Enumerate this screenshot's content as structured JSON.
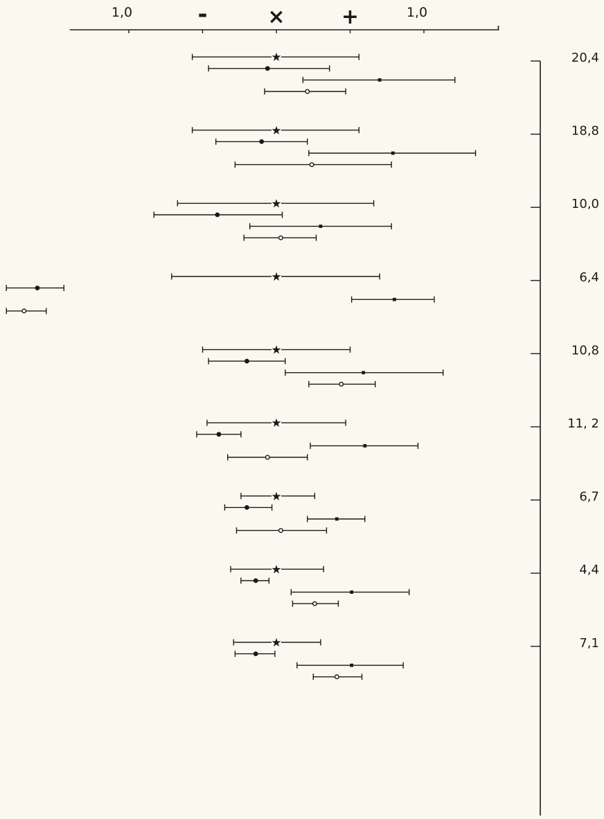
{
  "chart_data": {
    "type": "error-bar",
    "title": "",
    "xlabel": "",
    "ylabel": "",
    "x_ticks": [
      {
        "value": -1.0,
        "label": "1,0"
      },
      {
        "value": -0.5,
        "label": "-"
      },
      {
        "value": 0.0,
        "label": "×"
      },
      {
        "value": 0.5,
        "label": "+"
      },
      {
        "value": 1.0,
        "label": "1,0"
      }
    ],
    "x_extent": [
      -1.4,
      1.5
    ],
    "marker_styles": [
      "star",
      "dot",
      "square",
      "circle"
    ],
    "groups": [
      {
        "label": "20,4",
        "bars": [
          {
            "marker": "star",
            "center": 0.0,
            "low": -0.57,
            "high": 0.56
          },
          {
            "marker": "dot",
            "center": -0.06,
            "low": -0.46,
            "high": 0.36
          },
          {
            "marker": "square",
            "center": 0.7,
            "low": 0.18,
            "high": 1.21
          },
          {
            "marker": "circle",
            "center": 0.21,
            "low": -0.08,
            "high": 0.47
          }
        ]
      },
      {
        "label": "18,8",
        "bars": [
          {
            "marker": "star",
            "center": 0.0,
            "low": -0.57,
            "high": 0.56
          },
          {
            "marker": "dot",
            "center": -0.1,
            "low": -0.41,
            "high": 0.21
          },
          {
            "marker": "square",
            "center": 0.79,
            "low": 0.22,
            "high": 1.35
          },
          {
            "marker": "circle",
            "center": 0.24,
            "low": -0.28,
            "high": 0.78
          }
        ]
      },
      {
        "label": "10,0",
        "bars": [
          {
            "marker": "star",
            "center": 0.0,
            "low": -0.67,
            "high": 0.66
          },
          {
            "marker": "dot",
            "center": -0.4,
            "low": -0.83,
            "high": 0.04
          },
          {
            "marker": "square",
            "center": 0.3,
            "low": -0.18,
            "high": 0.78
          },
          {
            "marker": "circle",
            "center": 0.03,
            "low": -0.22,
            "high": 0.27
          }
        ]
      },
      {
        "label": "6,4",
        "bars": [
          {
            "marker": "star",
            "center": 0.0,
            "low": -0.71,
            "high": 0.7
          },
          {
            "marker": "dot",
            "center": -1.62,
            "low": -1.83,
            "high": -1.44
          },
          {
            "marker": "square",
            "center": 0.8,
            "low": 0.51,
            "high": 1.07
          },
          {
            "marker": "circle",
            "center": -1.71,
            "low": -1.83,
            "high": -1.56
          }
        ]
      },
      {
        "label": "10,8",
        "bars": [
          {
            "marker": "star",
            "center": 0.0,
            "low": -0.5,
            "high": 0.5
          },
          {
            "marker": "dot",
            "center": -0.2,
            "low": -0.46,
            "high": 0.06
          },
          {
            "marker": "square",
            "center": 0.59,
            "low": 0.06,
            "high": 1.13
          },
          {
            "marker": "circle",
            "center": 0.44,
            "low": 0.22,
            "high": 0.67
          }
        ]
      },
      {
        "label": "11, 2",
        "bars": [
          {
            "marker": "star",
            "center": 0.0,
            "low": -0.47,
            "high": 0.47
          },
          {
            "marker": "dot",
            "center": -0.39,
            "low": -0.54,
            "high": -0.24
          },
          {
            "marker": "square",
            "center": 0.6,
            "low": 0.23,
            "high": 0.96
          },
          {
            "marker": "circle",
            "center": -0.06,
            "low": -0.33,
            "high": 0.21
          }
        ]
      },
      {
        "label": "6,7",
        "bars": [
          {
            "marker": "star",
            "center": 0.0,
            "low": -0.24,
            "high": 0.26
          },
          {
            "marker": "dot",
            "center": -0.2,
            "low": -0.35,
            "high": -0.03
          },
          {
            "marker": "square",
            "center": 0.41,
            "low": 0.21,
            "high": 0.6
          },
          {
            "marker": "circle",
            "center": 0.03,
            "low": -0.27,
            "high": 0.34
          }
        ]
      },
      {
        "label": "4,4",
        "bars": [
          {
            "marker": "star",
            "center": 0.0,
            "low": -0.31,
            "high": 0.32
          },
          {
            "marker": "dot",
            "center": -0.14,
            "low": -0.24,
            "high": -0.05
          },
          {
            "marker": "square",
            "center": 0.51,
            "low": 0.1,
            "high": 0.9
          },
          {
            "marker": "circle",
            "center": 0.26,
            "low": 0.11,
            "high": 0.42
          }
        ]
      },
      {
        "label": "7,1",
        "bars": [
          {
            "marker": "star",
            "center": 0.0,
            "low": -0.29,
            "high": 0.3
          },
          {
            "marker": "dot",
            "center": -0.14,
            "low": -0.28,
            "high": -0.01
          },
          {
            "marker": "square",
            "center": 0.51,
            "low": 0.14,
            "high": 0.86
          },
          {
            "marker": "circle",
            "center": 0.41,
            "low": 0.25,
            "high": 0.58
          }
        ]
      }
    ]
  }
}
